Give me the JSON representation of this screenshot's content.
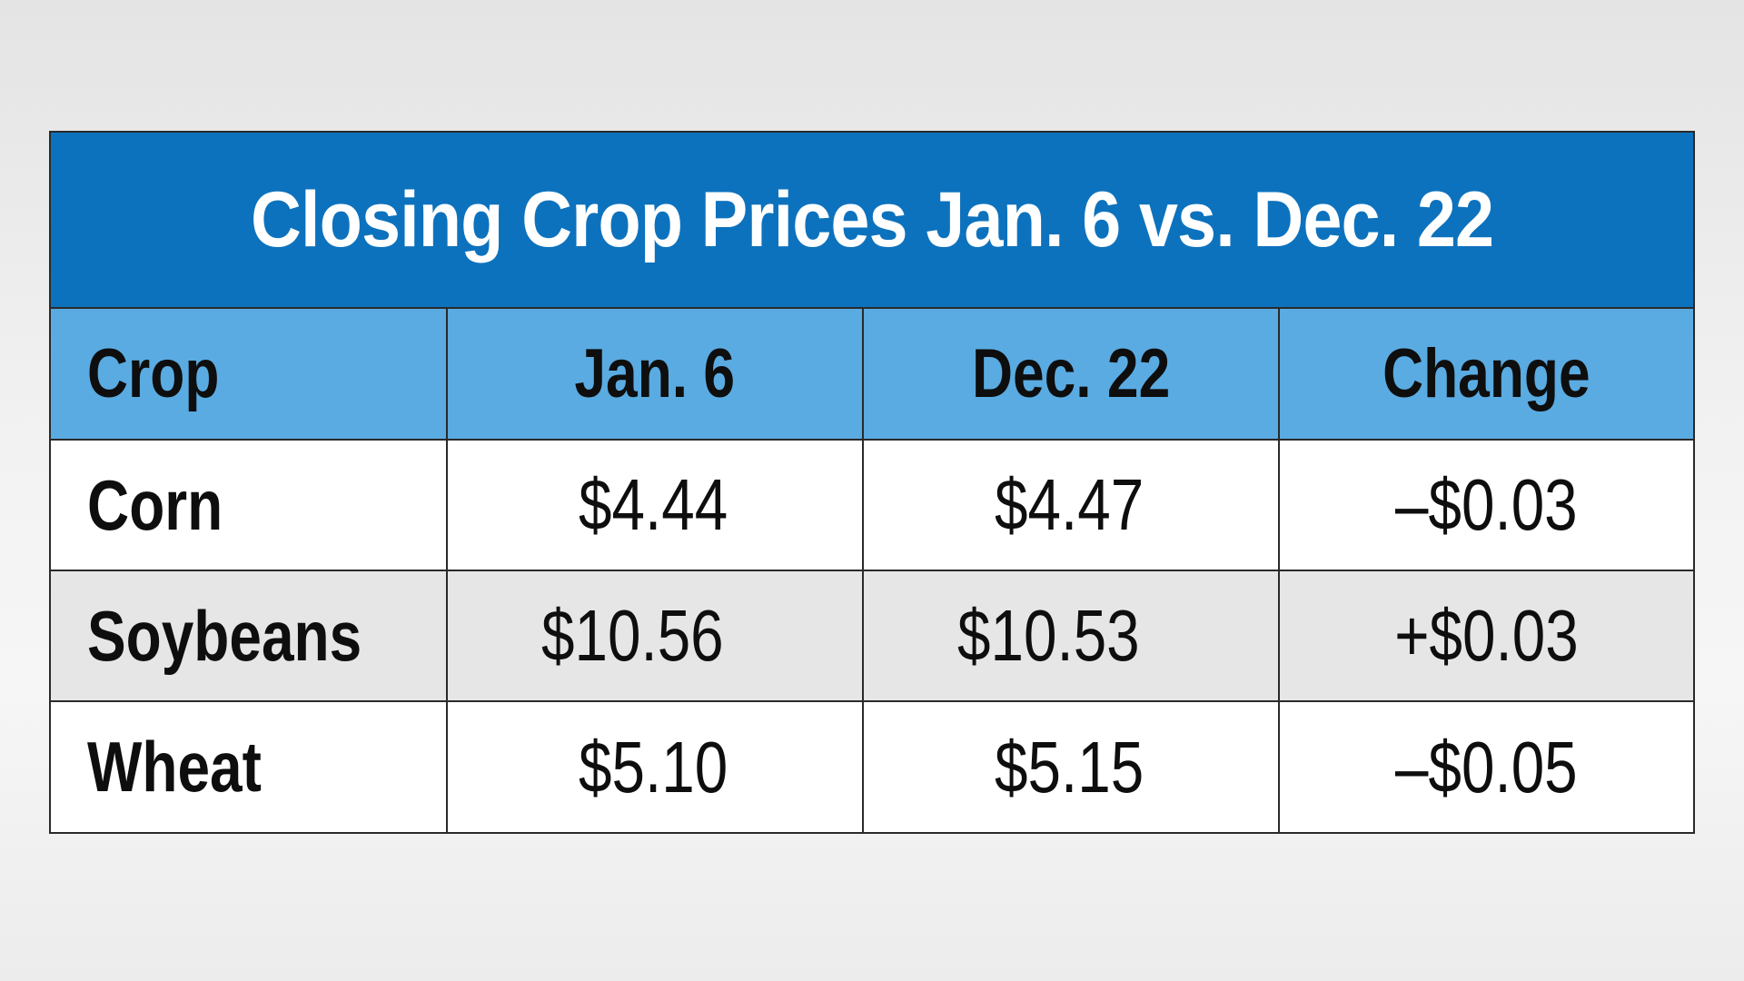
{
  "chart_data": {
    "type": "table",
    "title": "Closing Crop Prices Jan. 6 vs. Dec. 22",
    "columns": [
      "Crop",
      "Jan. 6",
      "Dec. 22",
      "Change"
    ],
    "rows": [
      [
        "Corn",
        "$4.44",
        "$4.47",
        "–$0.03"
      ],
      [
        "Soybeans",
        "$10.56",
        "$10.53",
        "+$0.03"
      ],
      [
        "Wheat",
        "$5.10",
        "$5.15",
        "–$0.05"
      ]
    ],
    "values": {
      "Corn": {
        "jan6": 4.44,
        "dec22": 4.47,
        "change": -0.03
      },
      "Soybeans": {
        "jan6": 10.56,
        "dec22": 10.53,
        "change": 0.03
      },
      "Wheat": {
        "jan6": 5.1,
        "dec22": 5.15,
        "change": -0.05
      }
    }
  },
  "colors": {
    "title_bar": "#0d72bd",
    "header_row": "#5aabe2",
    "alt_row": "#e6e6e6",
    "border": "#2a2a2a"
  }
}
